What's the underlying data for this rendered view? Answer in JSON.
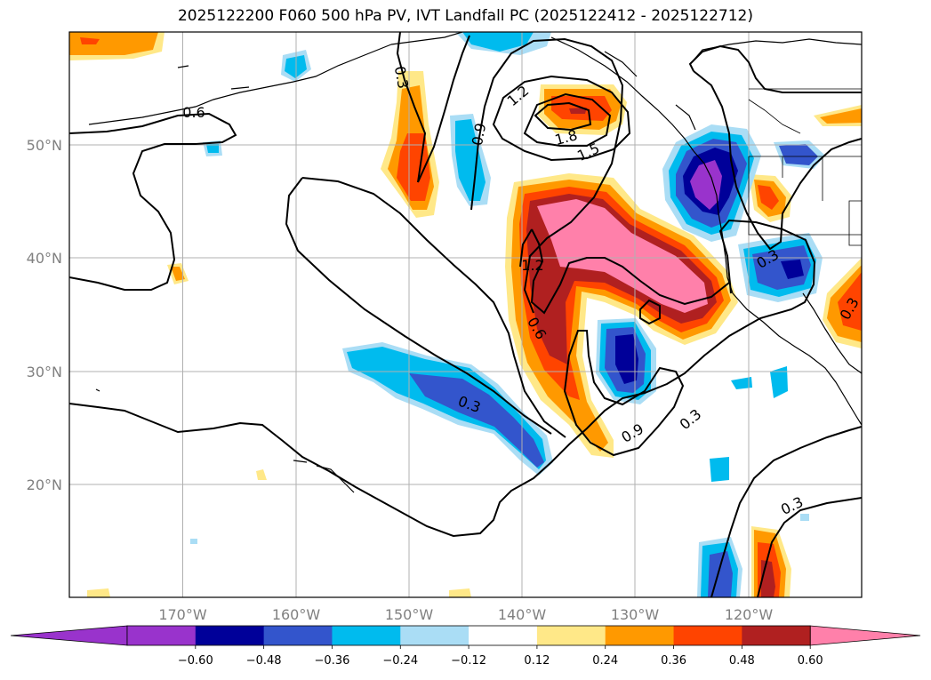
{
  "title": "2025122200 F060 500 hPa PV, IVT Landfall PC (2025122412 - 2025122712)",
  "lon_labels": [
    "170°W",
    "160°W",
    "150°W",
    "140°W",
    "130°W",
    "120°W"
  ],
  "lat_labels": [
    "50°N",
    "40°N",
    "30°N",
    "20°N"
  ],
  "contour_labels": [
    "0.6",
    "0.3",
    "1.2",
    "0.9",
    "1.8",
    "1.5",
    "1.2",
    "0.6",
    "0.3",
    "0.9",
    "0.3",
    "0.3",
    "0.3",
    "0.3"
  ],
  "colorbar": {
    "labels": [
      "−0.60",
      "−0.48",
      "−0.36",
      "−0.24",
      "−0.12",
      "0.12",
      "0.24",
      "0.36",
      "0.48",
      "0.60"
    ],
    "colors": [
      "#9933cc",
      "#000099",
      "#3355cc",
      "#00bbee",
      "#aaddf5",
      "#ffffff",
      "#ffe888",
      "#ff9900",
      "#ff4400",
      "#b02020",
      "#ff80aa"
    ],
    "under_color": "#9933cc",
    "over_color": "#ff80aa"
  }
}
